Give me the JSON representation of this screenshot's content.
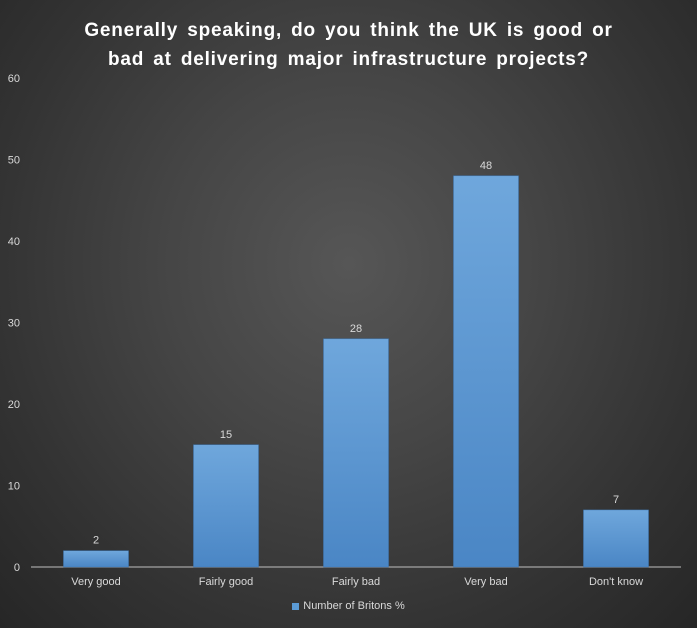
{
  "chart_data": {
    "type": "bar",
    "title_lines": [
      "Generally speaking, do you think the UK is good or",
      "bad at delivering major infrastructure projects?"
    ],
    "categories": [
      "Very good",
      "Fairly good",
      "Fairly bad",
      "Very bad",
      "Don't know"
    ],
    "series": [
      {
        "name": "Number of Britons %",
        "values": [
          2,
          15,
          28,
          48,
          7
        ],
        "color": "#5b9bd5"
      }
    ],
    "ylim": [
      0,
      60
    ],
    "yticks": [
      0,
      10,
      20,
      30,
      40,
      50,
      60
    ],
    "data_labels": [
      "2",
      "15",
      "28",
      "48",
      "7"
    ],
    "grid": false,
    "legend_position": "bottom",
    "background_color": "#404040",
    "text_color": "#d9d9d9"
  }
}
